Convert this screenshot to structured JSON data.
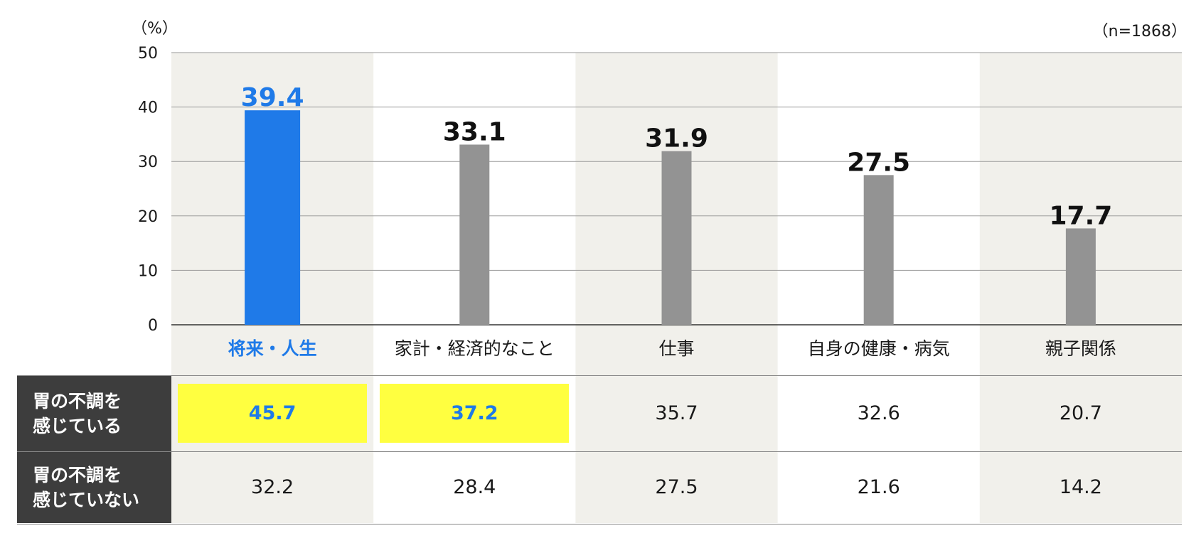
{
  "unit_label": "（%）",
  "n_label": "（n=1868）",
  "colors": {
    "highlight_bar": "#1f7ae8",
    "default_bar": "#939393",
    "band": "#f1f0eb",
    "cell_highlight": "#ffff40",
    "row_header_bg": "#3d3d3d"
  },
  "chart_data": {
    "type": "bar",
    "categories": [
      "将来・人生",
      "家計・経済的なこと",
      "仕事",
      "自身の健康・病気",
      "親子関係"
    ],
    "values": [
      39.4,
      33.1,
      31.9,
      27.5,
      17.7
    ],
    "value_labels": [
      "39.4",
      "33.1",
      "31.9",
      "27.5",
      "17.7"
    ],
    "highlight_index": 0,
    "ylim": [
      0,
      50
    ],
    "yticks": [
      "0",
      "10",
      "20",
      "30",
      "40",
      "50"
    ],
    "grid": true,
    "title": "",
    "xlabel": "",
    "ylabel": "（%）"
  },
  "table": {
    "rows": [
      {
        "header": "胃の不調を\n感じている",
        "values": [
          "45.7",
          "37.2",
          "35.7",
          "32.6",
          "20.7"
        ],
        "highlight": [
          true,
          true,
          false,
          false,
          false
        ]
      },
      {
        "header": "胃の不調を\n感じていない",
        "values": [
          "32.2",
          "28.4",
          "27.5",
          "21.6",
          "14.2"
        ],
        "highlight": [
          false,
          false,
          false,
          false,
          false
        ]
      }
    ]
  }
}
